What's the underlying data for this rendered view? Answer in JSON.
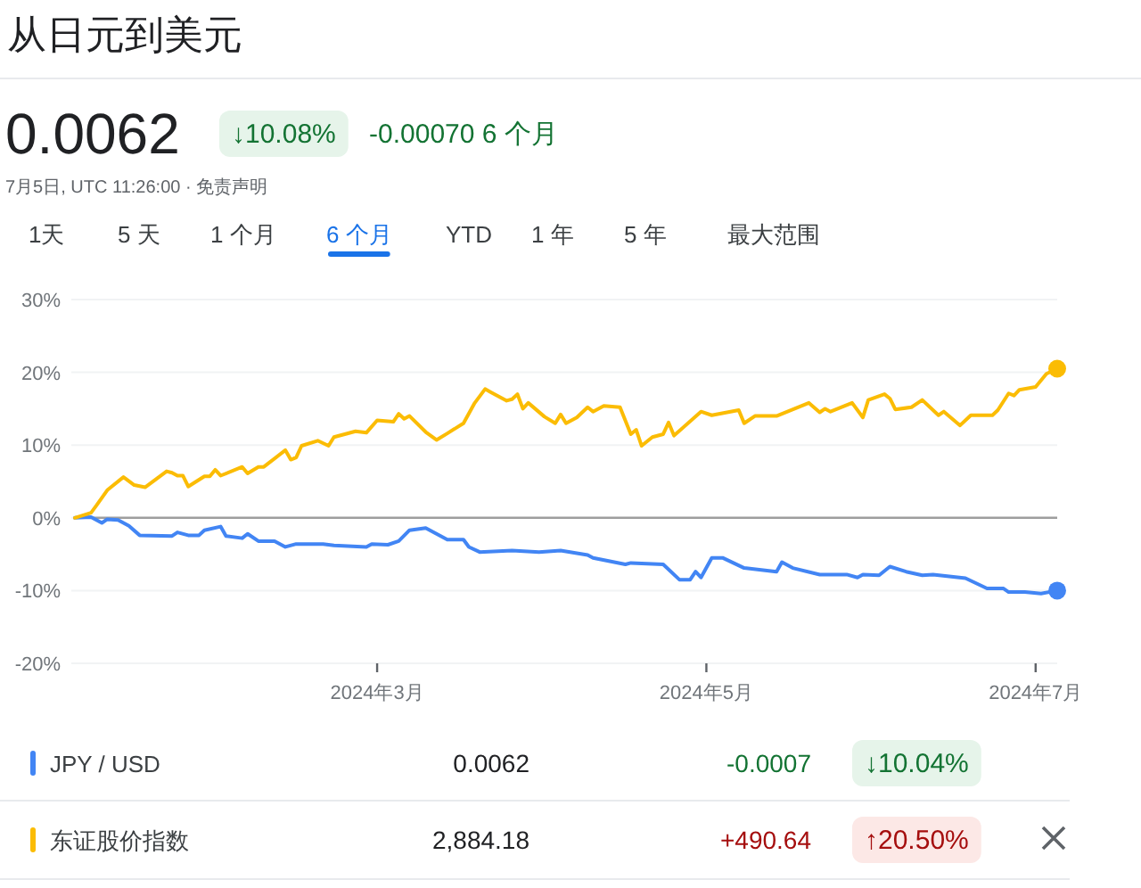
{
  "chart_data": {
    "type": "line",
    "title": "从日元到美元",
    "annotations": [
      "0.0062",
      "↓10.08%",
      "-0.00070 6 个月",
      "7月5日, UTC 11:26:00 · 免责声明",
      "1天",
      "5 天",
      "1 个月",
      "6 个月",
      "YTD",
      "1 年",
      "5 年",
      "最大范围",
      "0.0062",
      "-0.0007",
      "↓10.04%",
      "2,884.18",
      "+490.64",
      "↑20.50%"
    ],
    "xlim": [
      "2024-01-05",
      "2024-07-05"
    ],
    "xticks": [
      {
        "value": "2024-03-01",
        "label": "2024年3月"
      },
      {
        "value": "2024-05-01",
        "label": "2024年5月"
      },
      {
        "value": "2024-07-01",
        "label": "2024年7月"
      }
    ],
    "ylim": [
      -20,
      30
    ],
    "yticks": [
      {
        "value": -20,
        "label": "-20%"
      },
      {
        "value": -10,
        "label": "-10%"
      },
      {
        "value": 0,
        "label": "0%"
      },
      {
        "value": 10,
        "label": "10%"
      },
      {
        "value": 20,
        "label": "20%"
      },
      {
        "value": 30,
        "label": "30%"
      }
    ],
    "grid": "y",
    "legend": "bottom",
    "ref_lines": [
      {
        "axis": "y",
        "value": 0,
        "color": "#9e9e9e"
      }
    ],
    "series": [
      {
        "name": "JPY / USD",
        "color": "#4285f4",
        "x": [
          "2024-01-05",
          "2024-01-08",
          "2024-01-10",
          "2024-01-11",
          "2024-01-13",
          "2024-01-15",
          "2024-01-17",
          "2024-01-23",
          "2024-01-24",
          "2024-01-26",
          "2024-01-28",
          "2024-01-29",
          "2024-02-01",
          "2024-02-02",
          "2024-02-05",
          "2024-02-06",
          "2024-02-08",
          "2024-02-11",
          "2024-02-13",
          "2024-02-15",
          "2024-02-20",
          "2024-02-22",
          "2024-02-28",
          "2024-02-29",
          "2024-03-03",
          "2024-03-05",
          "2024-03-07",
          "2024-03-10",
          "2024-03-12",
          "2024-03-14",
          "2024-03-17",
          "2024-03-18",
          "2024-03-20",
          "2024-03-26",
          "2024-03-31",
          "2024-04-04",
          "2024-04-09",
          "2024-04-10",
          "2024-04-16",
          "2024-04-17",
          "2024-04-23",
          "2024-04-26",
          "2024-04-28",
          "2024-04-29",
          "2024-04-30",
          "2024-05-02",
          "2024-05-04",
          "2024-05-08",
          "2024-05-14",
          "2024-05-15",
          "2024-05-17",
          "2024-05-22",
          "2024-05-27",
          "2024-05-29",
          "2024-05-30",
          "2024-06-02",
          "2024-06-04",
          "2024-06-07",
          "2024-06-10",
          "2024-06-12",
          "2024-06-18",
          "2024-06-22",
          "2024-06-25",
          "2024-06-26",
          "2024-06-29",
          "2024-07-02",
          "2024-07-05"
        ],
        "values": [
          0,
          0.1,
          -0.7,
          -0.2,
          -0.3,
          -1.1,
          -2.4,
          -2.5,
          -2.0,
          -2.4,
          -2.4,
          -1.7,
          -1.2,
          -2.5,
          -2.8,
          -2.2,
          -3.2,
          -3.2,
          -4.0,
          -3.6,
          -3.6,
          -3.8,
          -4.0,
          -3.6,
          -3.7,
          -3.2,
          -1.7,
          -1.4,
          -2.2,
          -3.0,
          -3.0,
          -4.0,
          -4.7,
          -4.5,
          -4.7,
          -4.5,
          -5.1,
          -5.5,
          -6.4,
          -6.2,
          -6.4,
          -8.5,
          -8.5,
          -7.4,
          -8.2,
          -5.5,
          -5.5,
          -6.9,
          -7.4,
          -6.1,
          -6.9,
          -7.8,
          -7.8,
          -8.2,
          -7.8,
          -7.9,
          -6.7,
          -7.4,
          -7.9,
          -7.8,
          -8.3,
          -9.7,
          -9.7,
          -10.2,
          -10.2,
          -10.4,
          -10.0
        ]
      },
      {
        "name": "东证股价指数",
        "color": "#fbbc04",
        "x": [
          "2024-01-05",
          "2024-01-08",
          "2024-01-09",
          "2024-01-11",
          "2024-01-14",
          "2024-01-16",
          "2024-01-18",
          "2024-01-22",
          "2024-01-23",
          "2024-01-24",
          "2024-01-25",
          "2024-01-26",
          "2024-01-29",
          "2024-01-30",
          "2024-01-31",
          "2024-02-01",
          "2024-02-05",
          "2024-02-06",
          "2024-02-08",
          "2024-02-09",
          "2024-02-13",
          "2024-02-14",
          "2024-02-15",
          "2024-02-16",
          "2024-02-19",
          "2024-02-21",
          "2024-02-22",
          "2024-02-26",
          "2024-02-28",
          "2024-03-01",
          "2024-03-04",
          "2024-03-05",
          "2024-03-06",
          "2024-03-07",
          "2024-03-10",
          "2024-03-12",
          "2024-03-14",
          "2024-03-17",
          "2024-03-19",
          "2024-03-21",
          "2024-03-22",
          "2024-03-25",
          "2024-03-26",
          "2024-03-27",
          "2024-03-28",
          "2024-03-29",
          "2024-04-01",
          "2024-04-03",
          "2024-04-04",
          "2024-04-05",
          "2024-04-07",
          "2024-04-09",
          "2024-04-10",
          "2024-04-12",
          "2024-04-15",
          "2024-04-17",
          "2024-04-18",
          "2024-04-19",
          "2024-04-21",
          "2024-04-23",
          "2024-04-24",
          "2024-04-25",
          "2024-04-30",
          "2024-05-02",
          "2024-05-07",
          "2024-05-08",
          "2024-05-10",
          "2024-05-14",
          "2024-05-20",
          "2024-05-22",
          "2024-05-23",
          "2024-05-24",
          "2024-05-28",
          "2024-05-30",
          "2024-05-31",
          "2024-06-03",
          "2024-06-04",
          "2024-06-05",
          "2024-06-08",
          "2024-06-10",
          "2024-06-13",
          "2024-06-14",
          "2024-06-17",
          "2024-06-19",
          "2024-06-23",
          "2024-06-24",
          "2024-06-26",
          "2024-06-27",
          "2024-06-28",
          "2024-07-01",
          "2024-07-03",
          "2024-07-05"
        ],
        "values": [
          0,
          0.7,
          1.7,
          3.8,
          5.6,
          4.5,
          4.2,
          6.4,
          6.2,
          5.8,
          5.8,
          4.3,
          5.7,
          5.7,
          6.6,
          5.8,
          7.0,
          6.1,
          7.0,
          7.0,
          9.3,
          8.0,
          8.3,
          9.9,
          10.6,
          9.9,
          11.1,
          11.9,
          11.7,
          13.4,
          13.2,
          14.3,
          13.6,
          14.0,
          11.8,
          10.7,
          11.6,
          13.0,
          15.7,
          17.7,
          17.3,
          16.1,
          16.3,
          17.0,
          15.0,
          15.8,
          13.9,
          13.0,
          14.2,
          13.0,
          13.8,
          15.2,
          14.6,
          15.4,
          15.2,
          11.5,
          12.1,
          9.9,
          11.1,
          11.5,
          13.1,
          11.3,
          14.6,
          14.1,
          14.8,
          13.0,
          14.0,
          14.0,
          15.8,
          14.5,
          15.0,
          14.6,
          15.8,
          13.8,
          16.2,
          17.0,
          16.4,
          14.9,
          15.2,
          16.2,
          14.1,
          14.6,
          12.7,
          14.1,
          14.1,
          14.8,
          17.1,
          16.8,
          17.6,
          18.0,
          19.8,
          20.5
        ]
      }
    ]
  }
}
